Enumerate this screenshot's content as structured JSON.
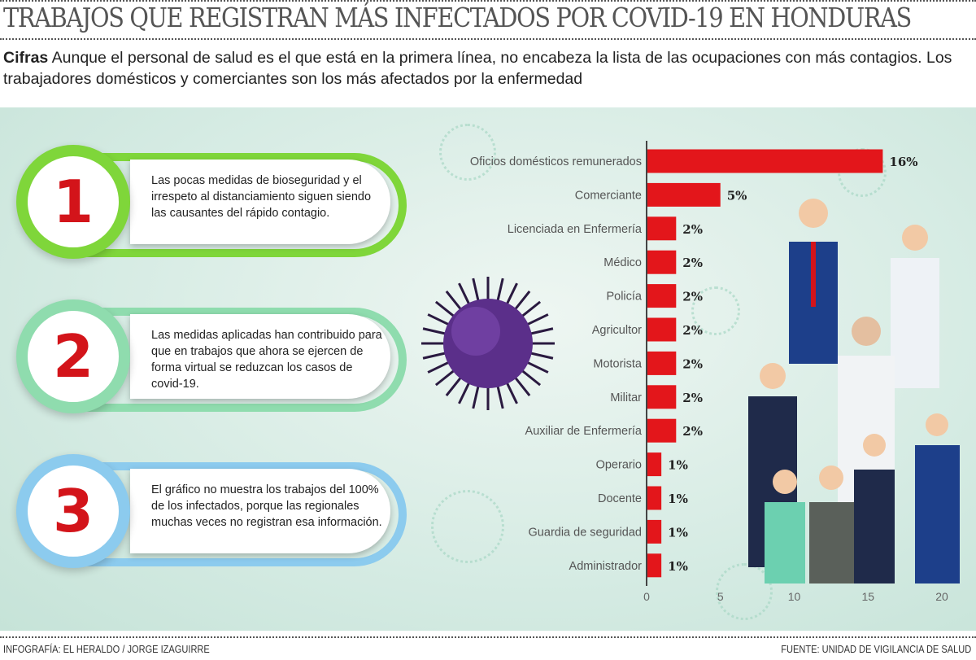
{
  "header": {
    "title": "TRABAJOS QUE REGISTRAN MÁS INFECTADOS POR COVID-19 EN HONDURAS",
    "lead_label": "Cifras",
    "lead_text": " Aunque el personal de salud es el que está en la primera línea, no encabeza la lista de las ocupaciones con más contagios. Los trabajadores domésticos y comerciantes son los más afectados por la enfermedad"
  },
  "points": [
    {
      "number": "1",
      "text": "Las pocas medidas de bioseguridad y el irrespeto al distanciamiento siguen siendo las causantes del rápido contagio.",
      "color": "#7fd63a"
    },
    {
      "number": "2",
      "text": "Las medidas aplicadas han contribuido para que en trabajos que ahora se ejercen de forma virtual se reduzcan los casos de covid-19.",
      "color": "#8fdcae"
    },
    {
      "number": "3",
      "text": "El gráfico no muestra los trabajos del 100% de los infectados, porque las regionales muchas veces no registran esa información.",
      "color": "#8ccbee"
    }
  ],
  "chart_data": {
    "type": "bar",
    "orientation": "horizontal",
    "categories": [
      "Oficios domésticos remunerados",
      "Comerciante",
      "Licenciada en Enfermería",
      "Médico",
      "Policía",
      "Agricultor",
      "Motorista",
      "Militar",
      "Auxiliar de Enfermería",
      "Operario",
      "Docente",
      "Guardia de seguridad",
      "Administrador"
    ],
    "values": [
      16,
      5,
      2,
      2,
      2,
      2,
      2,
      2,
      2,
      1,
      1,
      1,
      1
    ],
    "labels": [
      "16%",
      "5%",
      "2%",
      "2%",
      "2%",
      "2%",
      "2%",
      "2%",
      "2%",
      "1%",
      "1%",
      "1%",
      "1%"
    ],
    "xlim": [
      0,
      20
    ],
    "xticks": [
      "0",
      "5",
      "10",
      "15",
      "20"
    ],
    "bar_color": "#e3161b",
    "grid": false,
    "xlabel": "",
    "ylabel": ""
  },
  "footer": {
    "credit": "INFOGRAFÍA: EL HERALDO / JORGE IZAGUIRRE",
    "source": "FUENTE: UNIDAD DE VIGILANCIA DE SALUD"
  }
}
